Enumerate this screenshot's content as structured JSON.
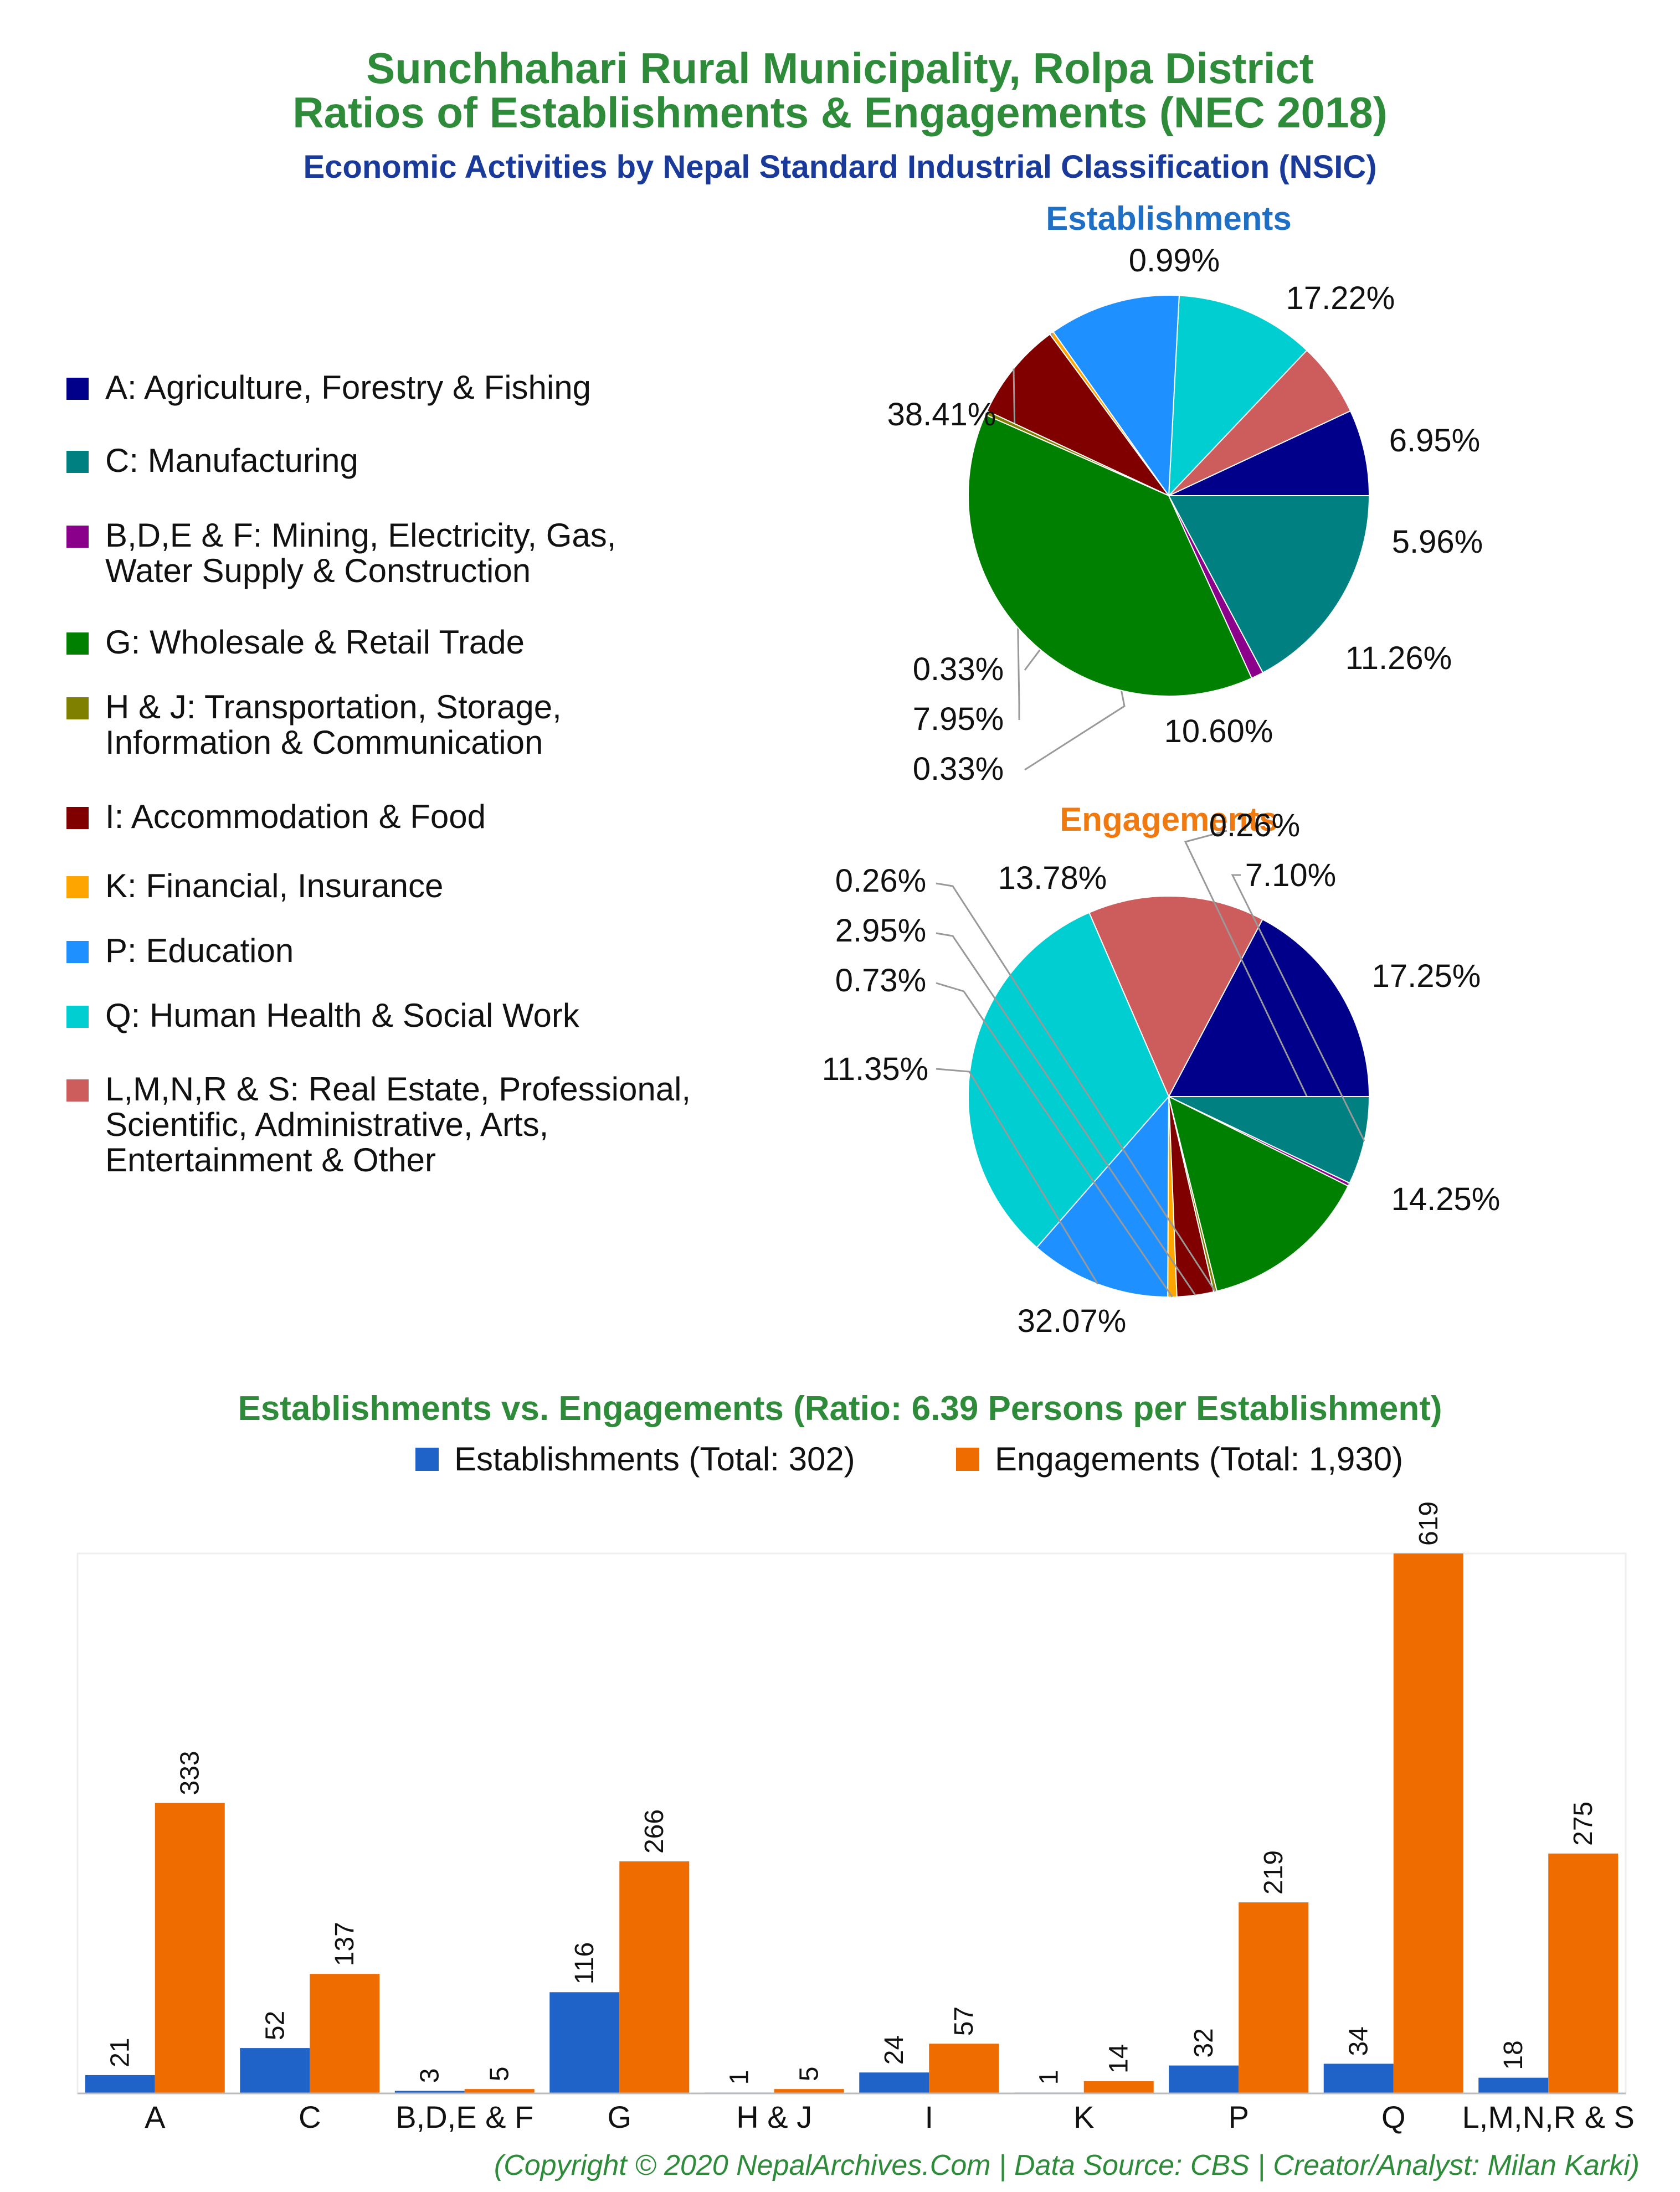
{
  "titles": {
    "line1": "Sunchhahari Rural Municipality, Rolpa District",
    "line2": "Ratios of Establishments & Engagements (NEC 2018)",
    "subtitle": "Economic Activities by Nepal Standard Industrial Classification (NSIC)",
    "bar_title": "Establishments vs. Engagements (Ratio: 6.39 Persons per Establishment)",
    "footer": "(Copyright © 2020 NepalArchives.Com | Data Source: CBS | Creator/Analyst: Milan Karki)"
  },
  "colors": {
    "title_green": "#2e8b3a",
    "subtitle_blue": "#1a3a9a",
    "establishments_title": "#1f6fc5",
    "engagements_title": "#f07a10",
    "bar_establishments": "#1f62c8",
    "bar_engagements": "#ef6c00"
  },
  "legend": [
    {
      "label": "A: Agriculture, Forestry & Fishing",
      "color": "#00008b"
    },
    {
      "label": "C: Manufacturing",
      "color": "#008080"
    },
    {
      "label": "B,D,E & F: Mining, Electricity, Gas,\nWater Supply & Construction",
      "color": "#8b008b"
    },
    {
      "label": "G: Wholesale & Retail Trade",
      "color": "#008000"
    },
    {
      "label": "H & J: Transportation, Storage,\nInformation & Communication",
      "color": "#808000"
    },
    {
      "label": "I: Accommodation & Food",
      "color": "#800000"
    },
    {
      "label": "K: Financial, Insurance",
      "color": "#ffa500"
    },
    {
      "label": "P: Education",
      "color": "#1e90ff"
    },
    {
      "label": "Q: Human Health & Social Work",
      "color": "#00ced1"
    },
    {
      "label": "L,M,N,R & S: Real Estate, Professional,\nScientific, Administrative, Arts,\nEntertainment & Other",
      "color": "#cd5c5c"
    }
  ],
  "chart_data": [
    {
      "type": "pie",
      "title": "Establishments",
      "categories": [
        "A",
        "C",
        "B,D,E & F",
        "G",
        "H & J",
        "I",
        "K",
        "P",
        "Q",
        "L,M,N,R & S"
      ],
      "values": [
        6.95,
        17.22,
        0.99,
        38.41,
        0.33,
        7.95,
        0.33,
        10.6,
        11.26,
        5.96
      ],
      "labels": [
        "6.95%",
        "17.22%",
        "0.99%",
        "38.41%",
        "0.33%",
        "7.95%",
        "0.33%",
        "10.60%",
        "11.26%",
        "5.96%"
      ]
    },
    {
      "type": "pie",
      "title": "Engagements",
      "categories": [
        "A",
        "C",
        "B,D,E & F",
        "G",
        "H & J",
        "I",
        "K",
        "P",
        "Q",
        "L,M,N,R & S"
      ],
      "values": [
        17.25,
        7.1,
        0.26,
        13.78,
        0.26,
        2.95,
        0.73,
        11.35,
        32.07,
        14.25
      ],
      "labels": [
        "17.25%",
        "7.10%",
        "0.26%",
        "13.78%",
        "0.26%",
        "2.95%",
        "0.73%",
        "11.35%",
        "32.07%",
        "14.25%"
      ]
    },
    {
      "type": "bar",
      "title": "Establishments vs. Engagements (Ratio: 6.39 Persons per Establishment)",
      "categories": [
        "A",
        "C",
        "B,D,E & F",
        "G",
        "H & J",
        "I",
        "K",
        "P",
        "Q",
        "L,M,N,R & S"
      ],
      "series": [
        {
          "name": "Establishments (Total: 302)",
          "values": [
            21,
            52,
            3,
            116,
            1,
            24,
            1,
            32,
            34,
            18
          ]
        },
        {
          "name": "Engagements (Total: 1,930)",
          "values": [
            333,
            137,
            5,
            266,
            5,
            57,
            14,
            219,
            619,
            275
          ]
        }
      ],
      "ylim": [
        0,
        619
      ],
      "grid": false
    }
  ]
}
